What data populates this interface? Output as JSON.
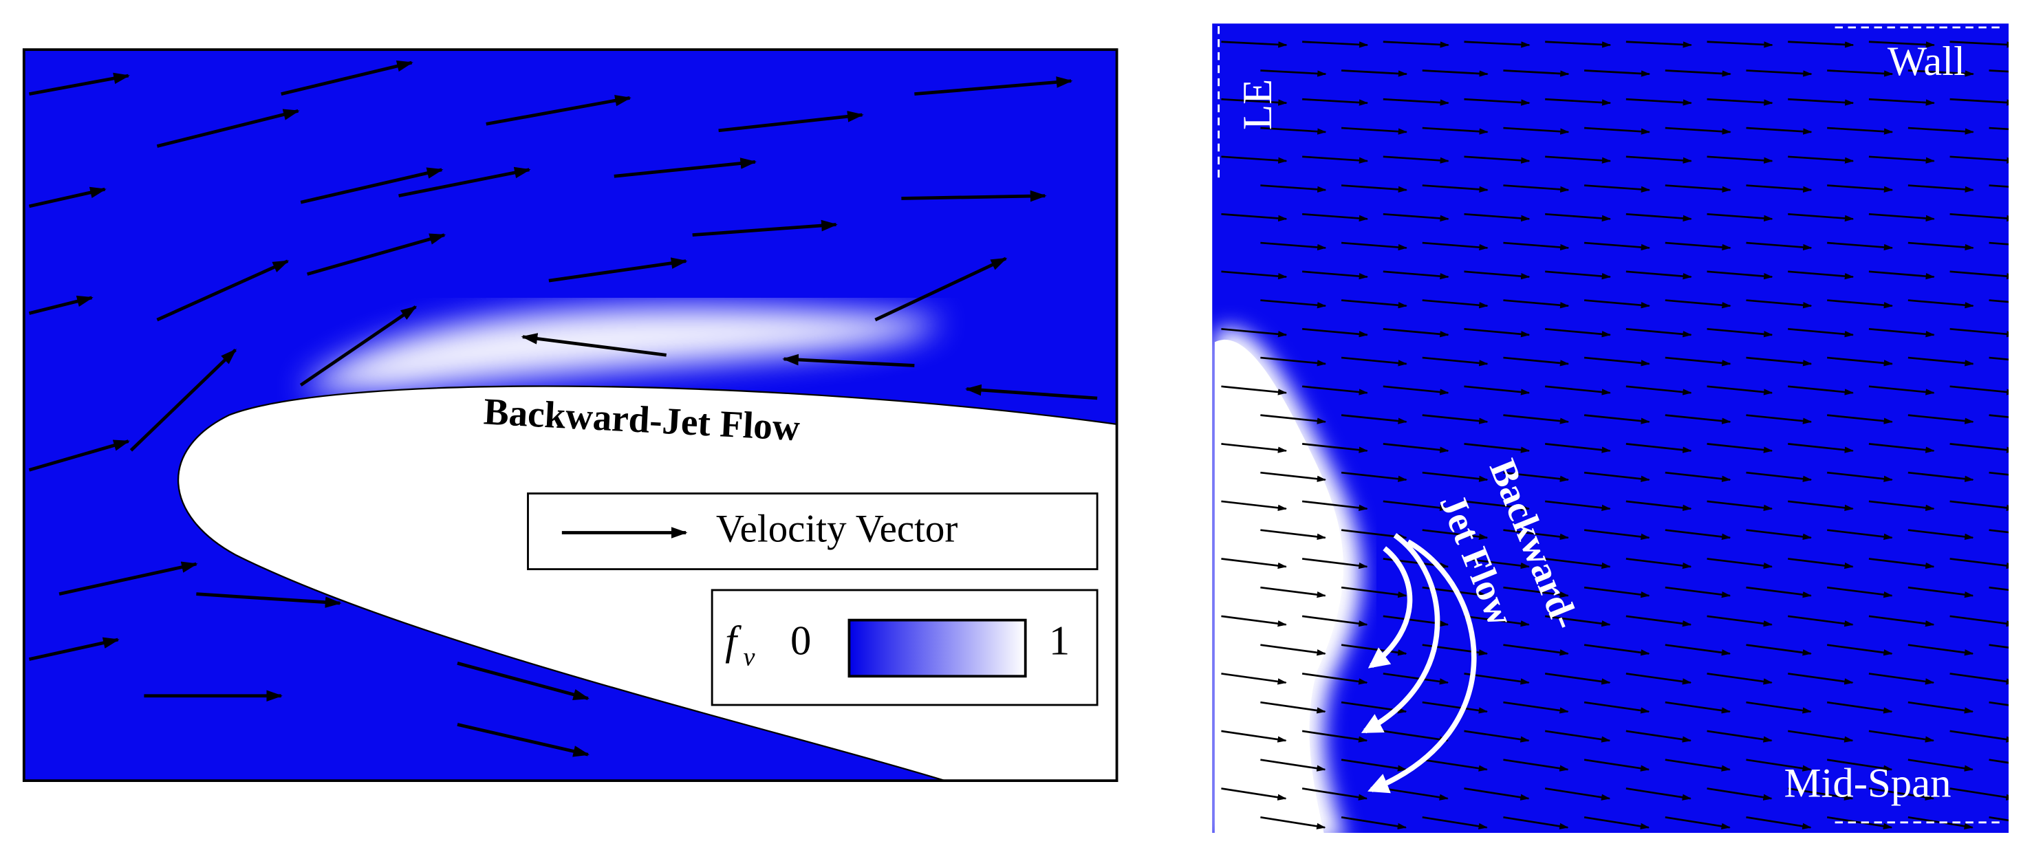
{
  "left_panel": {
    "annotation": "Backward-Jet Flow",
    "legend": {
      "vector_label": "Velocity Vector",
      "colorbar": {
        "symbol": "f",
        "subscript": "v",
        "min": 0,
        "max": 1
      }
    }
  },
  "right_panel": {
    "leading_edge": "LE",
    "wall": "Wall",
    "mid_span": "Mid-Span",
    "annotation": [
      "Backward-",
      "Jet Flow"
    ]
  }
}
